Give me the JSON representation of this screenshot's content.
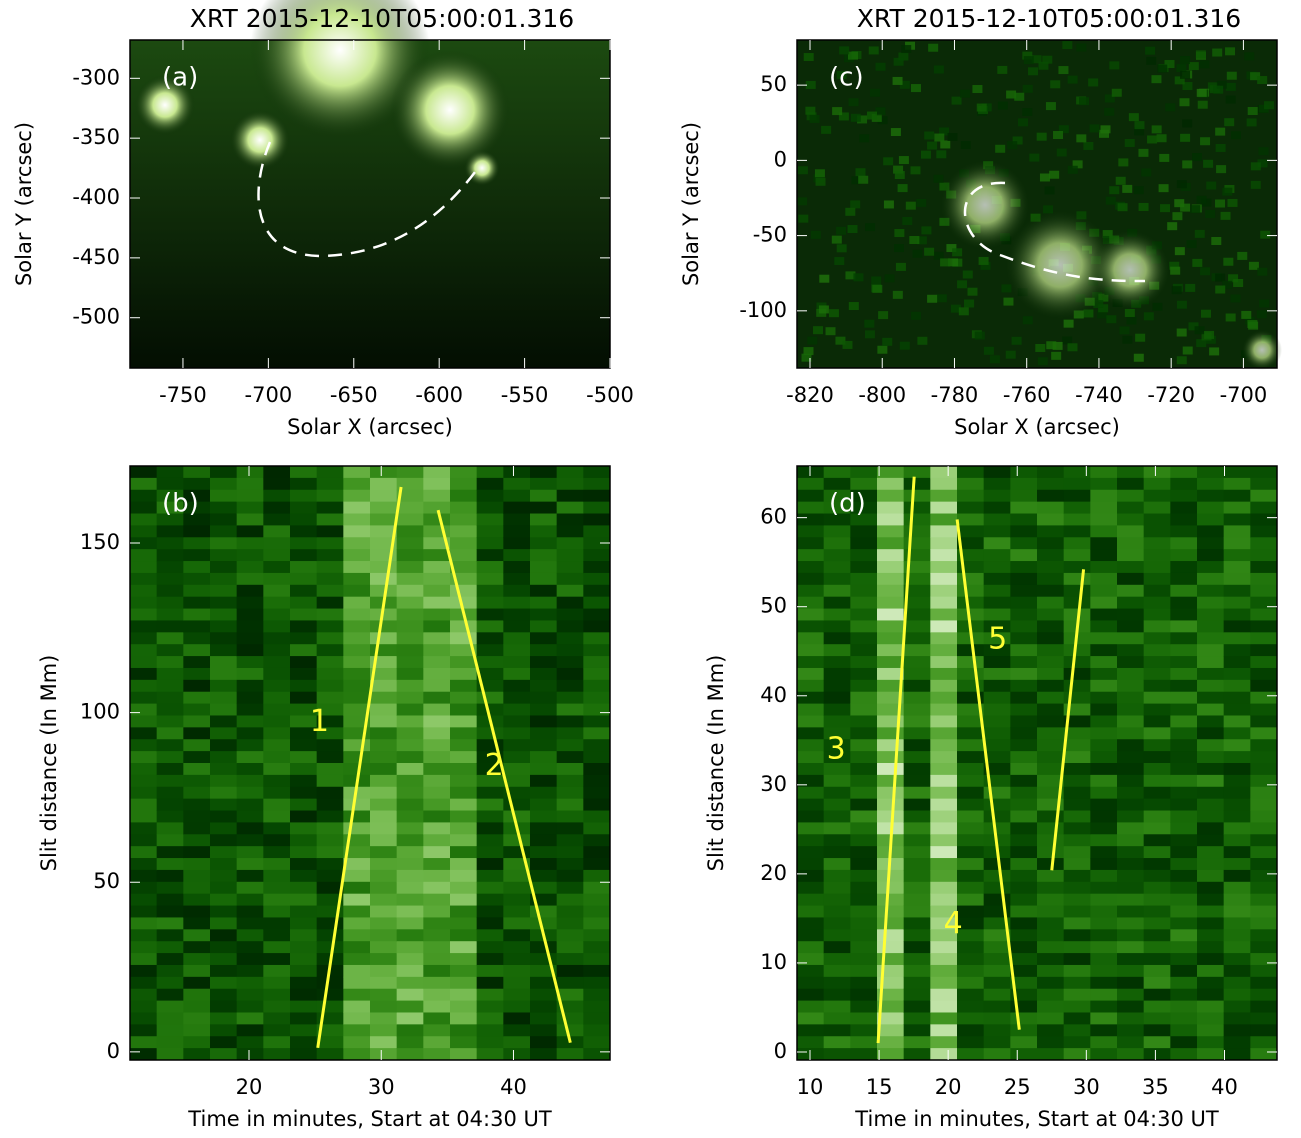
{
  "chart_data": [
    {
      "type": "image",
      "title": "XRT  2015-12-10T05:00:01.316",
      "panel": "(a)",
      "xlabel": "Solar X (arcsec)",
      "ylabel": "Solar Y (arcsec)",
      "xlim": [
        -781,
        -500
      ],
      "ylim": [
        -542,
        -268
      ],
      "xticks": [
        -750,
        -700,
        -650,
        -600,
        -550,
        -500
      ],
      "yticks": [
        -500,
        -450,
        -400,
        -350,
        -300
      ]
    },
    {
      "type": "time-distance",
      "panel": "(b)",
      "xlabel": "Time in minutes, Start at 04:30 UT",
      "ylabel": "Slit distance (In Mm)",
      "xlim": [
        11,
        47.3
      ],
      "ylim": [
        -2.4,
        172.7
      ],
      "xticks": [
        20,
        30,
        40
      ],
      "yticks": [
        0,
        50,
        100,
        150
      ],
      "tracks": [
        {
          "label": "1",
          "x": [
            25.2,
            31.5
          ],
          "y": [
            1.2,
            166.5
          ]
        },
        {
          "label": "2",
          "x": [
            34.3,
            44.3
          ],
          "y": [
            159.7,
            2.7
          ]
        }
      ]
    },
    {
      "type": "image",
      "title": "XRT  2015-12-10T05:00:01.316",
      "panel": "(c)",
      "xlabel": "Solar X (arcsec)",
      "ylabel": "Solar Y (arcsec)",
      "xlim": [
        -823.6,
        -690.7
      ],
      "ylim": [
        -138,
        80
      ],
      "xticks": [
        -820,
        -800,
        -780,
        -760,
        -740,
        -720,
        -700
      ],
      "yticks": [
        -100,
        -50,
        0,
        50
      ]
    },
    {
      "type": "time-distance",
      "panel": "(d)",
      "xlabel": "Time in minutes, Start at 04:30 UT",
      "ylabel": "Slit distance (In Mm)",
      "xlim": [
        9.06,
        43.8
      ],
      "ylim": [
        -0.9,
        65.8
      ],
      "xticks": [
        10,
        15,
        20,
        25,
        30,
        35,
        40
      ],
      "yticks": [
        0,
        10,
        20,
        30,
        40,
        50,
        60
      ],
      "tracks": [
        {
          "label": "3",
          "x": [
            14.93,
            17.54
          ],
          "y": [
            1.0,
            64.6
          ]
        },
        {
          "label": "4",
          "x": [
            20.65,
            25.15
          ],
          "y": [
            59.8,
            2.5
          ]
        },
        {
          "label": "5",
          "x": [
            27.5,
            29.8
          ],
          "y": [
            20.4,
            54.2
          ]
        }
      ]
    }
  ]
}
